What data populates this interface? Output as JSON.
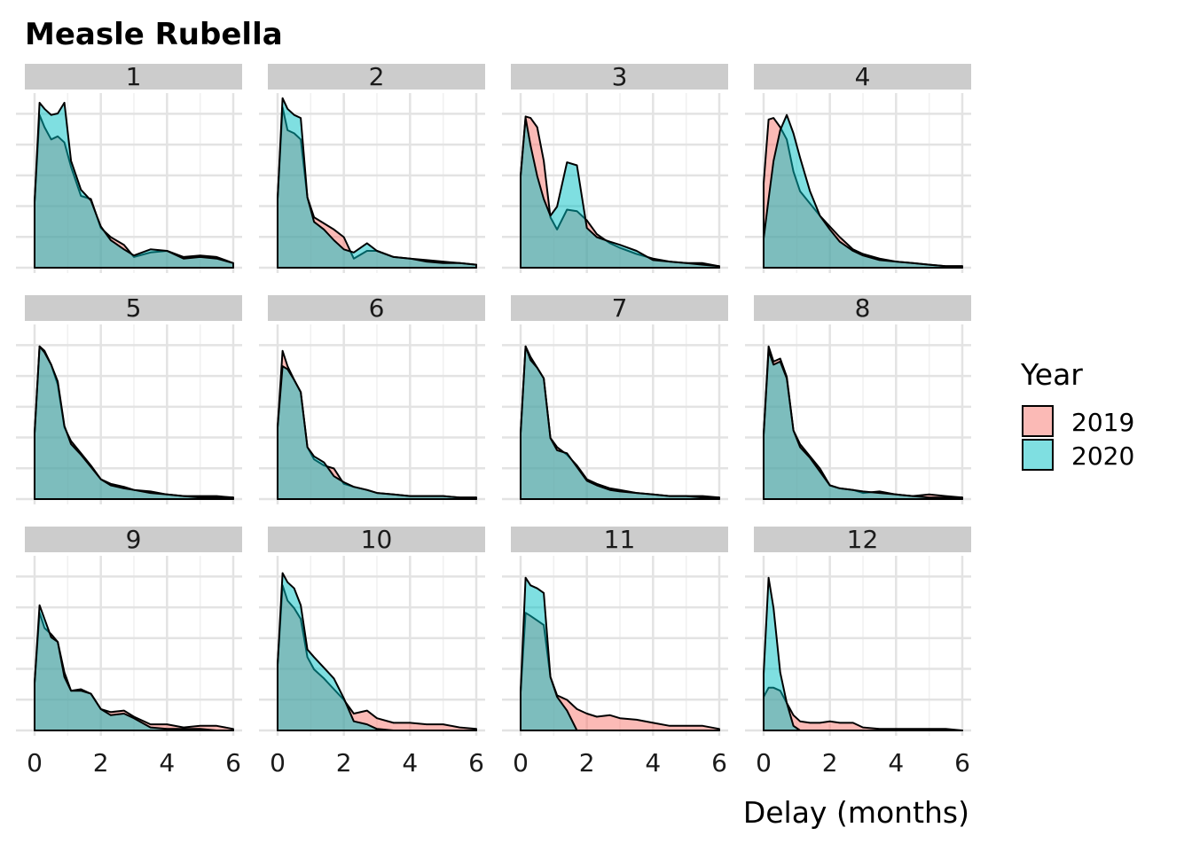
{
  "chart_data": {
    "type": "area",
    "title": "Measle Rubella",
    "xlabel": "Delay (months)",
    "ylabel": "",
    "xlim": [
      0,
      6
    ],
    "x_ticks": [
      "0",
      "2",
      "4",
      "6"
    ],
    "grid": true,
    "legend": {
      "title": "Year",
      "position": "right",
      "entries": [
        {
          "label": "2019",
          "color": "#F8766D"
        },
        {
          "label": "2020",
          "color": "#00BFC4"
        }
      ]
    },
    "x": [
      0,
      0.15,
      0.3,
      0.5,
      0.7,
      0.9,
      1.1,
      1.4,
      1.7,
      2.0,
      2.3,
      2.7,
      3.0,
      3.5,
      4.0,
      4.5,
      5.0,
      5.5,
      6.0
    ],
    "panels": [
      {
        "label": "1",
        "series": [
          {
            "name": "2019",
            "values": [
              0.43,
              1.0,
              0.92,
              0.84,
              0.86,
              0.82,
              0.66,
              0.47,
              0.45,
              0.26,
              0.2,
              0.15,
              0.07,
              0.1,
              0.11,
              0.07,
              0.08,
              0.07,
              0.03
            ]
          },
          {
            "name": "2020",
            "values": [
              0.43,
              1.08,
              1.04,
              1.0,
              1.01,
              1.08,
              0.7,
              0.51,
              0.44,
              0.27,
              0.18,
              0.12,
              0.08,
              0.12,
              0.11,
              0.06,
              0.07,
              0.06,
              0.03
            ]
          }
        ]
      },
      {
        "label": "2",
        "series": [
          {
            "name": "2019",
            "values": [
              0.45,
              1.05,
              0.9,
              0.88,
              0.84,
              0.46,
              0.33,
              0.29,
              0.25,
              0.2,
              0.06,
              0.11,
              0.11,
              0.07,
              0.06,
              0.05,
              0.04,
              0.03,
              0.02
            ]
          },
          {
            "name": "2020",
            "values": [
              0.45,
              1.11,
              1.04,
              1.0,
              0.98,
              0.46,
              0.3,
              0.25,
              0.18,
              0.12,
              0.1,
              0.16,
              0.11,
              0.07,
              0.06,
              0.04,
              0.03,
              0.03,
              0.02
            ]
          }
        ]
      },
      {
        "label": "3",
        "series": [
          {
            "name": "2019",
            "values": [
              0.6,
              0.99,
              0.98,
              0.92,
              0.7,
              0.33,
              0.25,
              0.38,
              0.37,
              0.31,
              0.22,
              0.16,
              0.13,
              0.09,
              0.06,
              0.04,
              0.03,
              0.03,
              0.01
            ]
          },
          {
            "name": "2020",
            "values": [
              0.6,
              0.98,
              0.8,
              0.6,
              0.45,
              0.34,
              0.4,
              0.69,
              0.67,
              0.26,
              0.2,
              0.17,
              0.15,
              0.11,
              0.05,
              0.04,
              0.03,
              0.02,
              0.01
            ]
          }
        ]
      },
      {
        "label": "4",
        "series": [
          {
            "name": "2019",
            "values": [
              0.55,
              0.97,
              0.98,
              0.92,
              0.84,
              0.63,
              0.5,
              0.42,
              0.34,
              0.27,
              0.2,
              0.12,
              0.09,
              0.06,
              0.04,
              0.03,
              0.02,
              0.01,
              0.01
            ]
          },
          {
            "name": "2020",
            "values": [
              0.19,
              0.45,
              0.7,
              0.9,
              1.0,
              0.88,
              0.72,
              0.5,
              0.34,
              0.25,
              0.17,
              0.11,
              0.08,
              0.05,
              0.04,
              0.03,
              0.02,
              0.01,
              0.01
            ]
          }
        ]
      },
      {
        "label": "5",
        "series": [
          {
            "name": "2019",
            "values": [
              0.43,
              1.0,
              0.97,
              0.88,
              0.75,
              0.47,
              0.38,
              0.3,
              0.22,
              0.13,
              0.1,
              0.08,
              0.06,
              0.05,
              0.03,
              0.02,
              0.02,
              0.02,
              0.01
            ]
          },
          {
            "name": "2020",
            "values": [
              0.43,
              1.0,
              0.96,
              0.88,
              0.77,
              0.48,
              0.36,
              0.29,
              0.21,
              0.13,
              0.09,
              0.07,
              0.06,
              0.04,
              0.03,
              0.02,
              0.01,
              0.01,
              0.01
            ]
          }
        ]
      },
      {
        "label": "6",
        "series": [
          {
            "name": "2019",
            "values": [
              0.47,
              0.97,
              0.87,
              0.78,
              0.7,
              0.34,
              0.26,
              0.22,
              0.2,
              0.1,
              0.08,
              0.06,
              0.04,
              0.03,
              0.02,
              0.02,
              0.02,
              0.01,
              0.01
            ]
          },
          {
            "name": "2020",
            "values": [
              0.47,
              0.87,
              0.85,
              0.78,
              0.7,
              0.34,
              0.28,
              0.24,
              0.15,
              0.11,
              0.08,
              0.06,
              0.04,
              0.03,
              0.02,
              0.02,
              0.02,
              0.01,
              0.01
            ]
          }
        ]
      },
      {
        "label": "7",
        "series": [
          {
            "name": "2019",
            "values": [
              0.43,
              1.0,
              0.93,
              0.86,
              0.79,
              0.4,
              0.34,
              0.29,
              0.22,
              0.13,
              0.1,
              0.07,
              0.06,
              0.04,
              0.03,
              0.02,
              0.02,
              0.02,
              0.01
            ]
          },
          {
            "name": "2020",
            "values": [
              0.43,
              1.0,
              0.91,
              0.86,
              0.79,
              0.4,
              0.32,
              0.3,
              0.21,
              0.12,
              0.09,
              0.06,
              0.05,
              0.04,
              0.03,
              0.02,
              0.02,
              0.01,
              0.01
            ]
          }
        ]
      },
      {
        "label": "8",
        "series": [
          {
            "name": "2019",
            "values": [
              0.42,
              1.0,
              0.9,
              0.92,
              0.8,
              0.45,
              0.36,
              0.28,
              0.2,
              0.09,
              0.07,
              0.06,
              0.04,
              0.05,
              0.03,
              0.02,
              0.03,
              0.02,
              0.01
            ]
          },
          {
            "name": "2020",
            "values": [
              0.42,
              0.97,
              0.88,
              0.9,
              0.79,
              0.45,
              0.34,
              0.27,
              0.18,
              0.09,
              0.07,
              0.06,
              0.05,
              0.04,
              0.03,
              0.02,
              0.01,
              0.01,
              0.01
            ]
          }
        ]
      },
      {
        "label": "9",
        "series": [
          {
            "name": "2019",
            "values": [
              0.31,
              0.77,
              0.67,
              0.63,
              0.58,
              0.38,
              0.26,
              0.27,
              0.24,
              0.14,
              0.12,
              0.13,
              0.09,
              0.04,
              0.04,
              0.02,
              0.03,
              0.03,
              0.01
            ]
          },
          {
            "name": "2020",
            "values": [
              0.31,
              0.82,
              0.73,
              0.61,
              0.58,
              0.35,
              0.26,
              0.26,
              0.24,
              0.14,
              0.1,
              0.11,
              0.08,
              0.02,
              0.01,
              0.01,
              0.01,
              0.0,
              0.0
            ]
          }
        ]
      },
      {
        "label": "10",
        "series": [
          {
            "name": "2019",
            "values": [
              0.43,
              0.95,
              0.85,
              0.8,
              0.73,
              0.48,
              0.4,
              0.34,
              0.27,
              0.2,
              0.11,
              0.13,
              0.08,
              0.05,
              0.05,
              0.04,
              0.04,
              0.02,
              0.01
            ]
          },
          {
            "name": "2020",
            "values": [
              0.43,
              1.03,
              0.97,
              0.93,
              0.82,
              0.53,
              0.48,
              0.41,
              0.34,
              0.21,
              0.06,
              0.04,
              0.01,
              0.0,
              0.0,
              0.0,
              0.0,
              0.0,
              0.0
            ]
          }
        ]
      },
      {
        "label": "11",
        "series": [
          {
            "name": "2019",
            "values": [
              0.25,
              0.77,
              0.75,
              0.72,
              0.69,
              0.35,
              0.23,
              0.2,
              0.14,
              0.11,
              0.09,
              0.1,
              0.08,
              0.07,
              0.05,
              0.03,
              0.03,
              0.03,
              0.01
            ]
          },
          {
            "name": "2020",
            "values": [
              0.25,
              1.0,
              0.95,
              0.93,
              0.9,
              0.35,
              0.22,
              0.13,
              0.0,
              0.0,
              0.0,
              0.0,
              0.0,
              0.0,
              0.0,
              0.0,
              0.0,
              0.0,
              0.0
            ]
          }
        ]
      },
      {
        "label": "12",
        "series": [
          {
            "name": "2019",
            "values": [
              0.22,
              0.28,
              0.28,
              0.26,
              0.18,
              0.1,
              0.06,
              0.05,
              0.05,
              0.06,
              0.05,
              0.05,
              0.02,
              0.01,
              0.01,
              0.01,
              0.01,
              0.01,
              0.0
            ]
          },
          {
            "name": "2020",
            "values": [
              0.37,
              1.0,
              0.8,
              0.38,
              0.18,
              0.03,
              0.0,
              0.0,
              0.0,
              0.0,
              0.0,
              0.0,
              0.0,
              0.0,
              0.0,
              0.0,
              0.0,
              0.0,
              0.0
            ]
          }
        ]
      }
    ]
  }
}
